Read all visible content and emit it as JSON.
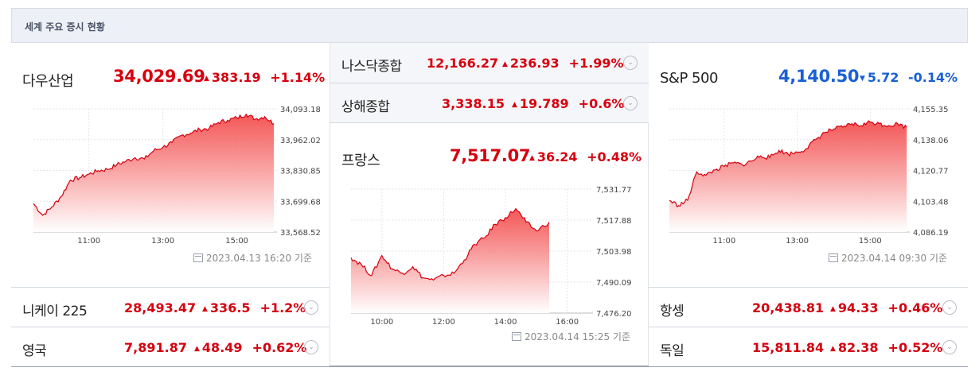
{
  "header": {
    "title": "세계 주요 증시 현황"
  },
  "panels": {
    "dow": {
      "name": "다우산업",
      "price": "34,029.69",
      "change": "383.19",
      "pct": "+1.14%",
      "direction": "up",
      "timestamp": "2023.04.13 16:20 기준"
    },
    "france": {
      "name": "프랑스",
      "price": "7,517.07",
      "change": "36.24",
      "pct": "+0.48%",
      "direction": "up",
      "timestamp": "2023.04.14 15:25 기준"
    },
    "sp500": {
      "name": "S&P 500",
      "price": "4,140.50",
      "change": "5.72",
      "pct": "-0.14%",
      "direction": "down",
      "timestamp": "2023.04.14 09:30 기준"
    }
  },
  "rows": {
    "nasdaq": {
      "name": "나스닥종합",
      "price": "12,166.27",
      "change": "236.93",
      "pct": "+1.99%",
      "direction": "up"
    },
    "shanghai": {
      "name": "상해종합",
      "price": "3,338.15",
      "change": "19.789",
      "pct": "+0.6%",
      "direction": "up"
    },
    "nikkei": {
      "name": "니케이 225",
      "price": "28,493.47",
      "change": "336.5",
      "pct": "+1.2%",
      "direction": "up"
    },
    "uk": {
      "name": "영국",
      "price": "7,891.87",
      "change": "48.49",
      "pct": "+0.62%",
      "direction": "up"
    },
    "hangseng": {
      "name": "항셍",
      "price": "20,438.81",
      "change": "94.33",
      "pct": "+0.46%",
      "direction": "up"
    },
    "germany": {
      "name": "독일",
      "price": "15,811.84",
      "change": "82.38",
      "pct": "+0.52%",
      "direction": "up"
    }
  },
  "icons": {
    "up": "▲",
    "down": "▼",
    "expand": "chevron-down-icon",
    "calendar": "calendar-icon"
  },
  "colors": {
    "up": "#d6000f",
    "down": "#1a5fd6",
    "area_top": "#f23a3a"
  },
  "chart_data": [
    {
      "type": "area",
      "name": "다우산업",
      "ylim": [
        33568.52,
        34093.18
      ],
      "yticks": [
        "34,093.18",
        "33,962.02",
        "33,830.85",
        "33,699.68",
        "33,568.52"
      ],
      "xticks": [
        "11:00",
        "13:00",
        "15:00"
      ],
      "x": [
        "09:30",
        "09:45",
        "10:00",
        "10:15",
        "10:30",
        "10:45",
        "11:00",
        "11:15",
        "11:30",
        "11:45",
        "12:00",
        "12:15",
        "12:30",
        "12:45",
        "13:00",
        "13:15",
        "13:30",
        "13:45",
        "14:00",
        "14:15",
        "14:30",
        "14:45",
        "15:00",
        "15:15",
        "15:30",
        "15:45",
        "16:00"
      ],
      "values": [
        33690,
        33640,
        33675,
        33720,
        33790,
        33800,
        33815,
        33830,
        33835,
        33855,
        33870,
        33885,
        33880,
        33915,
        33930,
        33950,
        33980,
        33990,
        34005,
        34010,
        34035,
        34045,
        34055,
        34070,
        34050,
        34060,
        34030
      ]
    },
    {
      "type": "area",
      "name": "프랑스",
      "ylim": [
        7476.2,
        7531.77
      ],
      "yticks": [
        "7,531.77",
        "7,517.88",
        "7,503.98",
        "7,490.09",
        "7,476.20"
      ],
      "xticks": [
        "10:00",
        "12:00",
        "14:00",
        "16:00"
      ],
      "x": [
        "09:00",
        "09:20",
        "09:40",
        "10:00",
        "10:20",
        "10:40",
        "11:00",
        "11:20",
        "11:40",
        "12:00",
        "12:20",
        "12:40",
        "13:00",
        "13:20",
        "13:40",
        "14:00",
        "14:20",
        "14:40",
        "15:00",
        "15:25"
      ],
      "values": [
        7501,
        7498,
        7493,
        7502,
        7496,
        7494,
        7497,
        7492,
        7491,
        7493,
        7494,
        7500,
        7507,
        7510,
        7516,
        7519,
        7523,
        7517,
        7513,
        7517
      ]
    },
    {
      "type": "area",
      "name": "S&P 500",
      "ylim": [
        4086.19,
        4155.35
      ],
      "yticks": [
        "4,155.35",
        "4,138.06",
        "4,120.77",
        "4,103.48",
        "4,086.19"
      ],
      "xticks": [
        "11:00",
        "13:00",
        "15:00"
      ],
      "x": [
        "09:30",
        "09:45",
        "10:00",
        "10:15",
        "10:30",
        "10:45",
        "11:00",
        "11:15",
        "11:30",
        "11:45",
        "12:00",
        "12:15",
        "12:30",
        "12:45",
        "13:00",
        "13:15",
        "13:30",
        "13:45",
        "14:00",
        "14:15",
        "14:30",
        "14:45",
        "15:00",
        "15:15",
        "15:30",
        "15:45",
        "16:00"
      ],
      "values": [
        4104,
        4101,
        4104,
        4120,
        4118,
        4121,
        4123,
        4125,
        4124,
        4126,
        4129,
        4128,
        4132,
        4130,
        4131,
        4133,
        4138,
        4142,
        4144,
        4145,
        4147,
        4146,
        4148,
        4147,
        4146,
        4147,
        4145
      ]
    }
  ]
}
